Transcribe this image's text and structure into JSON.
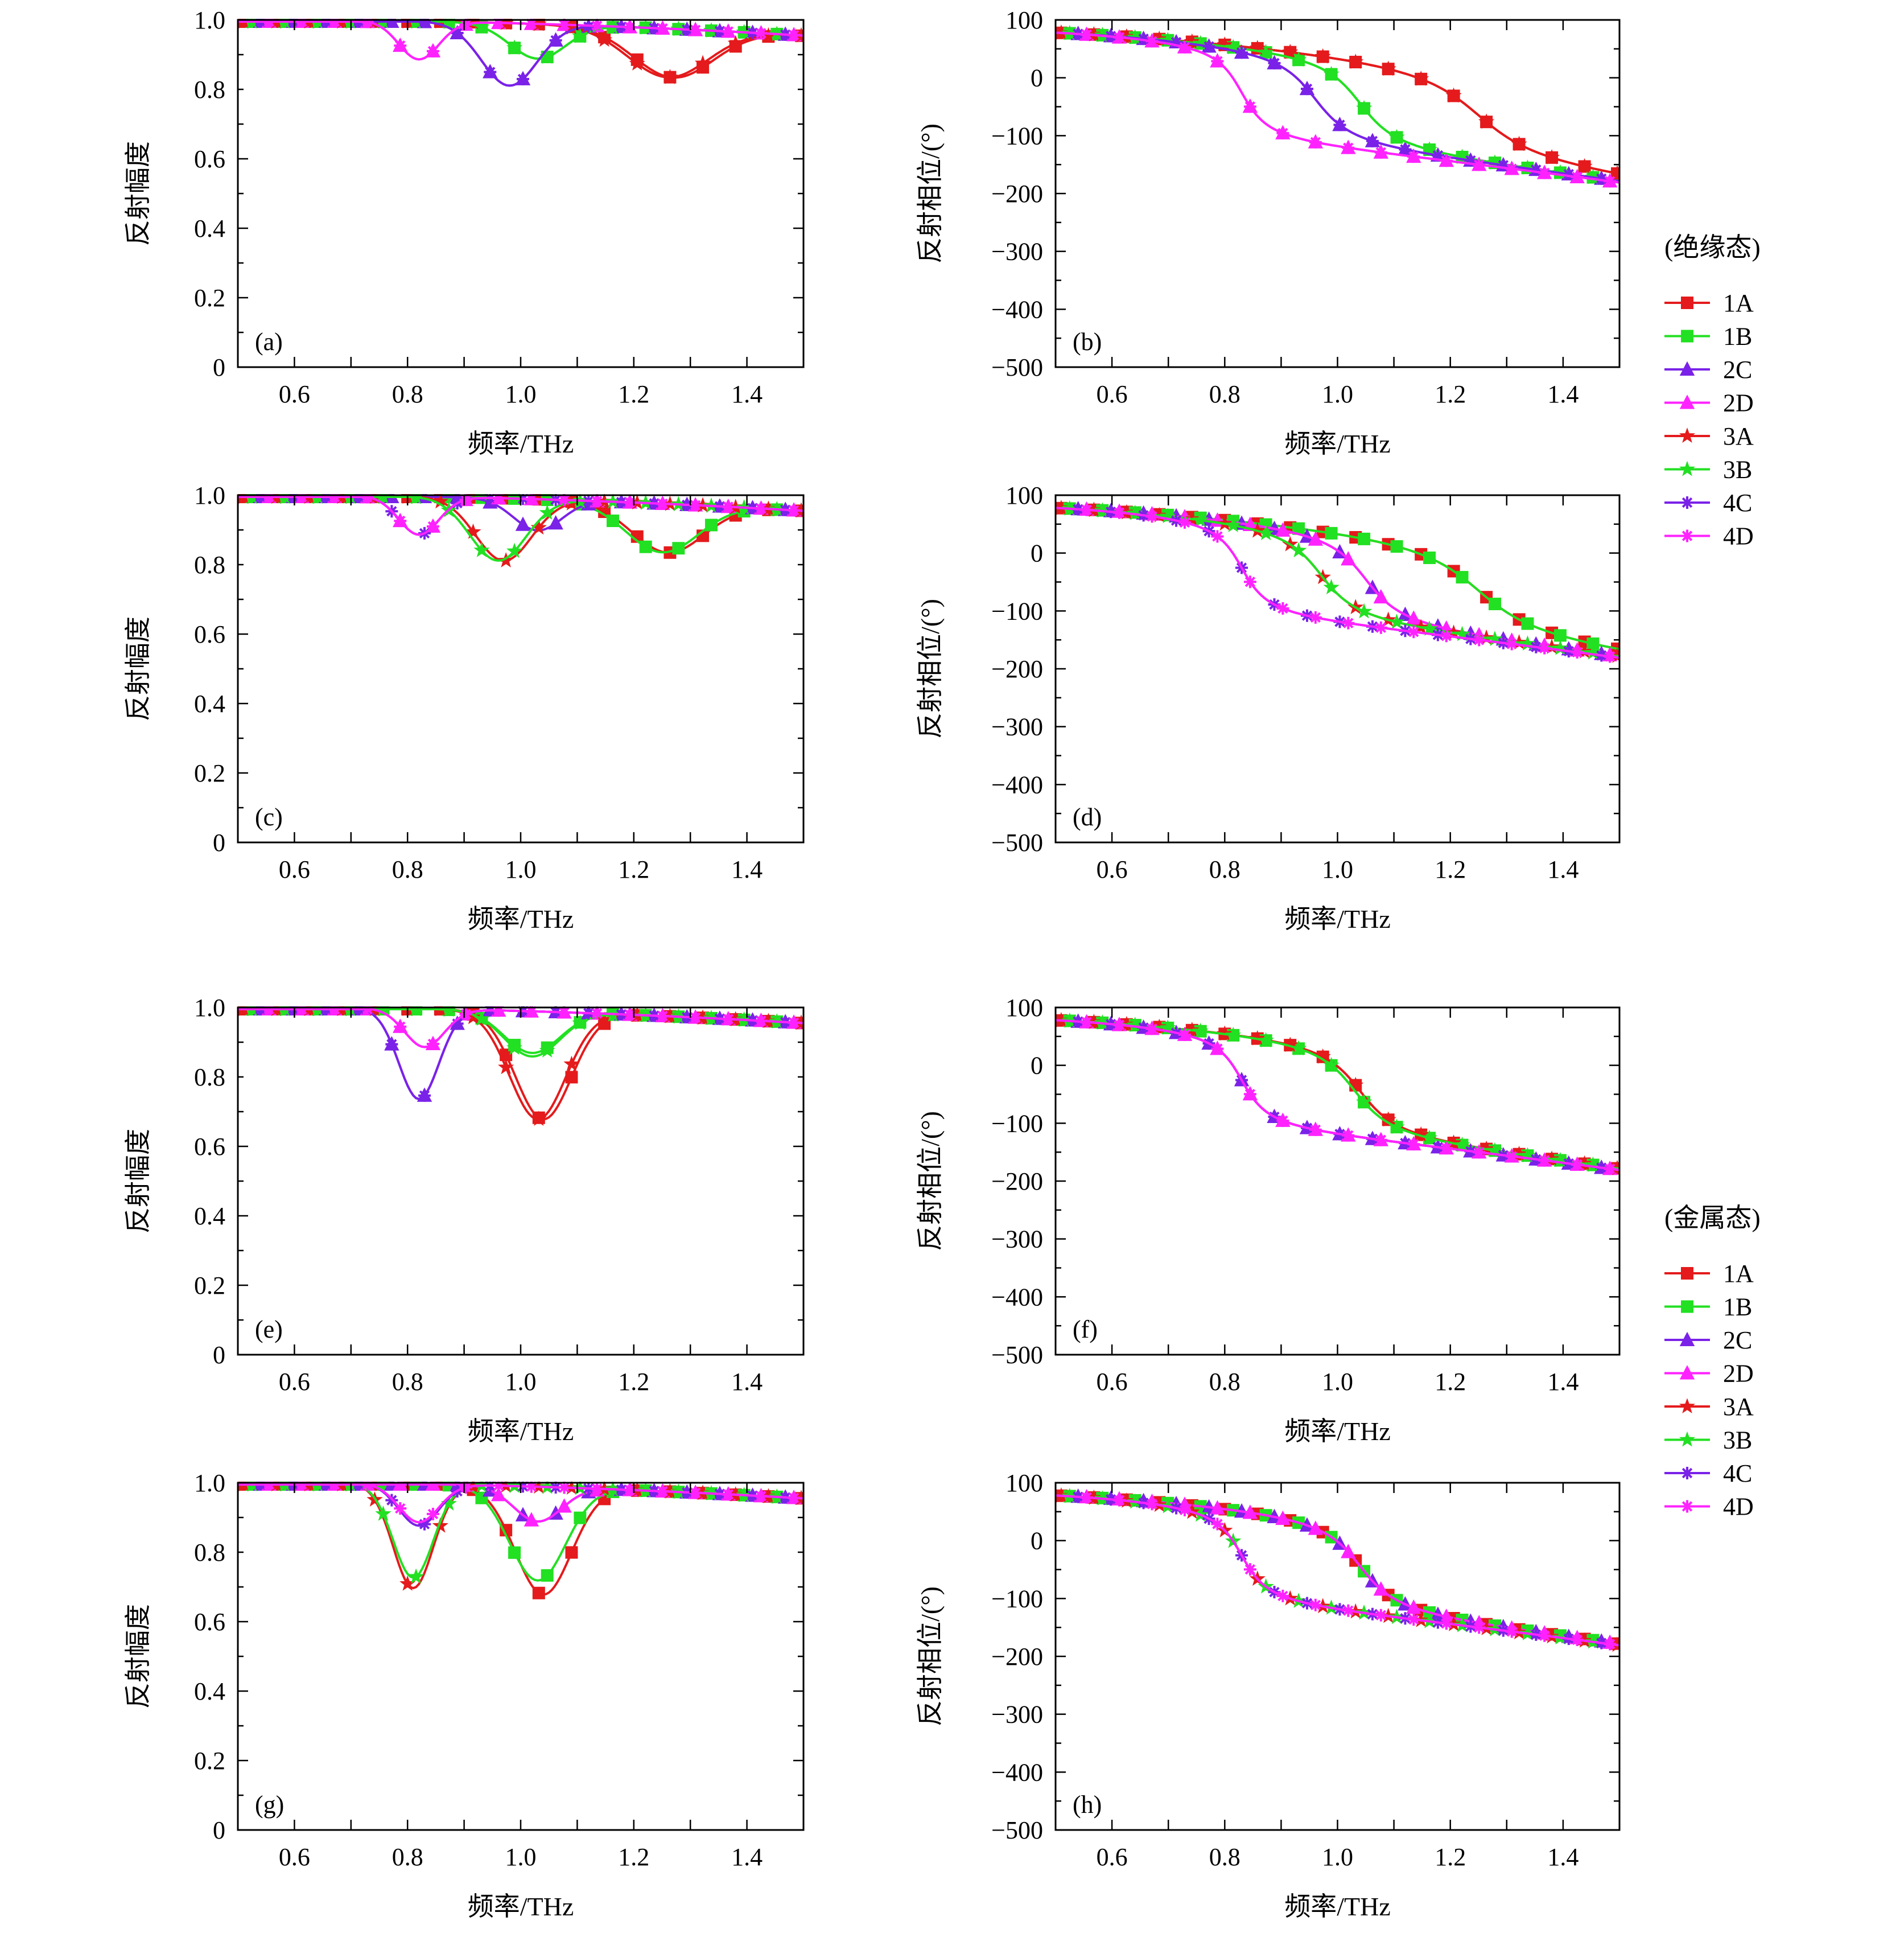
{
  "figure": {
    "series_styles": [
      {
        "name": "1A",
        "color": "#e41a1c",
        "marker": "square"
      },
      {
        "name": "1B",
        "color": "#22e022",
        "marker": "square"
      },
      {
        "name": "2C",
        "color": "#7a22e8",
        "marker": "triangle"
      },
      {
        "name": "2D",
        "color": "#ff22ff",
        "marker": "triangle"
      },
      {
        "name": "3A",
        "color": "#e41a1c",
        "marker": "star"
      },
      {
        "name": "3B",
        "color": "#22e022",
        "marker": "star"
      },
      {
        "name": "4C",
        "color": "#7a22e8",
        "marker": "asterisk"
      },
      {
        "name": "4D",
        "color": "#ff22ff",
        "marker": "asterisk"
      }
    ],
    "legends": [
      {
        "title": "(绝缘态)",
        "entries": [
          "1A",
          "1B",
          "2C",
          "2D",
          "3A",
          "3B",
          "4C",
          "4D"
        ]
      },
      {
        "title": "(金属态)",
        "entries": [
          "1A",
          "1B",
          "2C",
          "2D",
          "3A",
          "3B",
          "4C",
          "4D"
        ]
      }
    ]
  },
  "chart_data": [
    {
      "panel": "(a)",
      "type": "line",
      "xlabel": "频率/THz",
      "ylabel": "反射幅度",
      "xlim": [
        0.5,
        1.5
      ],
      "ylim": [
        0,
        1.0
      ],
      "xticks": [
        "0.6",
        "0.8",
        "1.0",
        "1.2",
        "1.4"
      ],
      "yticks": [
        "0",
        "0.2",
        "0.4",
        "0.6",
        "0.8",
        "1.0"
      ],
      "series": [
        {
          "name": "1A",
          "dips": [
            [
              1.27,
              0.86,
              0.1
            ]
          ]
        },
        {
          "name": "1B",
          "dips": [
            [
              1.03,
              0.9,
              0.07
            ]
          ]
        },
        {
          "name": "2C",
          "dips": [
            [
              0.98,
              0.82,
              0.07
            ]
          ]
        },
        {
          "name": "2D",
          "dips": [
            [
              0.82,
              0.89,
              0.05
            ]
          ]
        },
        {
          "name": "3A",
          "dips": [
            [
              1.26,
              0.86,
              0.1
            ]
          ]
        },
        {
          "name": "3B",
          "dips": [
            [
              1.03,
              0.9,
              0.07
            ]
          ]
        },
        {
          "name": "4C",
          "dips": [
            [
              0.98,
              0.82,
              0.07
            ]
          ]
        },
        {
          "name": "4D",
          "dips": [
            [
              0.82,
              0.89,
              0.05
            ]
          ]
        }
      ]
    },
    {
      "panel": "(b)",
      "type": "line",
      "xlabel": "频率/THz",
      "ylabel": "反射相位/(°)",
      "xlim": [
        0.5,
        1.5
      ],
      "ylim": [
        -500,
        100
      ],
      "xticks": [
        "0.6",
        "0.8",
        "1.0",
        "1.2",
        "1.4"
      ],
      "yticks": [
        "−500",
        "−400",
        "−300",
        "−200",
        "−100",
        "0",
        "100"
      ],
      "series": [
        {
          "name": "1A",
          "res": 1.25,
          "w": 0.08
        },
        {
          "name": "1B",
          "res": 1.04,
          "w": 0.05
        },
        {
          "name": "2C",
          "res": 0.96,
          "w": 0.05
        },
        {
          "name": "2D",
          "res": 0.83,
          "w": 0.035
        },
        {
          "name": "3A",
          "res": 1.25,
          "w": 0.08
        },
        {
          "name": "3B",
          "res": 1.04,
          "w": 0.05
        },
        {
          "name": "4C",
          "res": 0.96,
          "w": 0.05
        },
        {
          "name": "4D",
          "res": 0.83,
          "w": 0.035
        }
      ]
    },
    {
      "panel": "(c)",
      "type": "line",
      "xlabel": "频率/THz",
      "ylabel": "反射幅度",
      "xlim": [
        0.5,
        1.5
      ],
      "ylim": [
        0,
        1.0
      ],
      "xticks": [
        "0.6",
        "0.8",
        "1.0",
        "1.2",
        "1.4"
      ],
      "yticks": [
        "0",
        "0.2",
        "0.4",
        "0.6",
        "0.8",
        "1.0"
      ],
      "series": [
        {
          "name": "1A",
          "dips": [
            [
              1.26,
              0.86,
              0.09
            ]
          ]
        },
        {
          "name": "1B",
          "dips": [
            [
              1.25,
              0.86,
              0.09
            ]
          ]
        },
        {
          "name": "2C",
          "dips": [
            [
              1.03,
              0.91,
              0.06
            ]
          ]
        },
        {
          "name": "2D",
          "dips": [
            [
              0.82,
              0.89,
              0.05
            ]
          ]
        },
        {
          "name": "3A",
          "dips": [
            [
              0.97,
              0.82,
              0.07
            ]
          ]
        },
        {
          "name": "3B",
          "dips": [
            [
              0.96,
              0.82,
              0.07
            ]
          ]
        },
        {
          "name": "4C",
          "dips": [
            [
              0.82,
              0.89,
              0.05
            ]
          ]
        },
        {
          "name": "4D",
          "dips": [
            [
              0.82,
              0.89,
              0.05
            ]
          ]
        }
      ]
    },
    {
      "panel": "(d)",
      "type": "line",
      "xlabel": "频率/THz",
      "ylabel": "反射相位/(°)",
      "xlim": [
        0.5,
        1.5
      ],
      "ylim": [
        -500,
        100
      ],
      "xticks": [
        "0.6",
        "0.8",
        "1.0",
        "1.2",
        "1.4"
      ],
      "yticks": [
        "−500",
        "−400",
        "−300",
        "−200",
        "−100",
        "0",
        "100"
      ],
      "series": [
        {
          "name": "1A",
          "res": 1.25,
          "w": 0.08
        },
        {
          "name": "1B",
          "res": 1.25,
          "w": 0.08
        },
        {
          "name": "2C",
          "res": 1.05,
          "w": 0.05
        },
        {
          "name": "2D",
          "res": 1.05,
          "w": 0.05
        },
        {
          "name": "3A",
          "res": 0.97,
          "w": 0.05
        },
        {
          "name": "3B",
          "res": 0.97,
          "w": 0.05
        },
        {
          "name": "4C",
          "res": 0.83,
          "w": 0.035
        },
        {
          "name": "4D",
          "res": 0.83,
          "w": 0.035
        }
      ]
    },
    {
      "panel": "(e)",
      "type": "line",
      "xlabel": "频率/THz",
      "ylabel": "反射幅度",
      "xlim": [
        0.5,
        1.5
      ],
      "ylim": [
        0,
        1.0
      ],
      "xticks": [
        "0.6",
        "0.8",
        "1.0",
        "1.2",
        "1.4"
      ],
      "yticks": [
        "0",
        "0.2",
        "0.4",
        "0.6",
        "0.8",
        "1.0"
      ],
      "series": [
        {
          "name": "1A",
          "dips": [
            [
              1.04,
              0.69,
              0.07
            ]
          ]
        },
        {
          "name": "1B",
          "dips": [
            [
              1.02,
              0.88,
              0.07
            ]
          ]
        },
        {
          "name": "2C",
          "dips": [
            [
              0.82,
              0.74,
              0.05
            ]
          ]
        },
        {
          "name": "2D",
          "dips": [
            [
              0.83,
              0.89,
              0.05
            ]
          ]
        },
        {
          "name": "3A",
          "dips": [
            [
              1.03,
              0.69,
              0.07
            ]
          ]
        },
        {
          "name": "3B",
          "dips": [
            [
              1.02,
              0.87,
              0.07
            ]
          ]
        },
        {
          "name": "4C",
          "dips": [
            [
              0.82,
              0.74,
              0.05
            ]
          ]
        },
        {
          "name": "4D",
          "dips": [
            [
              0.83,
              0.89,
              0.05
            ]
          ]
        }
      ]
    },
    {
      "panel": "(f)",
      "type": "line",
      "xlabel": "频率/THz",
      "ylabel": "反射相位/(°)",
      "xlim": [
        0.5,
        1.5
      ],
      "ylim": [
        -500,
        100
      ],
      "xticks": [
        "0.6",
        "0.8",
        "1.0",
        "1.2",
        "1.4"
      ],
      "yticks": [
        "−500",
        "−400",
        "−300",
        "−200",
        "−100",
        "0",
        "100"
      ],
      "series": [
        {
          "name": "1A",
          "res": 1.04,
          "w": 0.05
        },
        {
          "name": "1B",
          "res": 1.03,
          "w": 0.05
        },
        {
          "name": "2C",
          "res": 0.83,
          "w": 0.035
        },
        {
          "name": "2D",
          "res": 0.83,
          "w": 0.035
        },
        {
          "name": "3A",
          "res": 1.04,
          "w": 0.05
        },
        {
          "name": "3B",
          "res": 1.03,
          "w": 0.05
        },
        {
          "name": "4C",
          "res": 0.83,
          "w": 0.035
        },
        {
          "name": "4D",
          "res": 0.83,
          "w": 0.035
        }
      ]
    },
    {
      "panel": "(g)",
      "type": "line",
      "xlabel": "频率/THz",
      "ylabel": "反射幅度",
      "xlim": [
        0.5,
        1.5
      ],
      "ylim": [
        0,
        1.0
      ],
      "xticks": [
        "0.6",
        "0.8",
        "1.0",
        "1.2",
        "1.4"
      ],
      "yticks": [
        "0",
        "0.2",
        "0.4",
        "0.6",
        "0.8",
        "1.0"
      ],
      "series": [
        {
          "name": "1A",
          "dips": [
            [
              1.04,
              0.69,
              0.07
            ]
          ]
        },
        {
          "name": "1B",
          "dips": [
            [
              1.03,
              0.73,
              0.07
            ]
          ]
        },
        {
          "name": "2C",
          "dips": [
            [
              1.03,
              0.9,
              0.06
            ]
          ]
        },
        {
          "name": "2D",
          "dips": [
            [
              1.03,
              0.9,
              0.06
            ]
          ]
        },
        {
          "name": "3A",
          "dips": [
            [
              0.81,
              0.7,
              0.05
            ]
          ]
        },
        {
          "name": "3B",
          "dips": [
            [
              0.81,
              0.73,
              0.05
            ]
          ]
        },
        {
          "name": "4C",
          "dips": [
            [
              0.82,
              0.88,
              0.05
            ]
          ]
        },
        {
          "name": "4D",
          "dips": [
            [
              0.82,
              0.89,
              0.05
            ]
          ]
        }
      ]
    },
    {
      "panel": "(h)",
      "type": "line",
      "xlabel": "频率/THz",
      "ylabel": "反射相位/(°)",
      "xlim": [
        0.5,
        1.5
      ],
      "ylim": [
        -500,
        100
      ],
      "xticks": [
        "0.6",
        "0.8",
        "1.0",
        "1.2",
        "1.4"
      ],
      "yticks": [
        "−500",
        "−400",
        "−300",
        "−200",
        "−100",
        "0",
        "100"
      ],
      "series": [
        {
          "name": "1A",
          "res": 1.04,
          "w": 0.05
        },
        {
          "name": "1B",
          "res": 1.04,
          "w": 0.05
        },
        {
          "name": "2C",
          "res": 1.04,
          "w": 0.05
        },
        {
          "name": "2D",
          "res": 1.04,
          "w": 0.05
        },
        {
          "name": "3A",
          "res": 0.83,
          "w": 0.035
        },
        {
          "name": "3B",
          "res": 0.83,
          "w": 0.035
        },
        {
          "name": "4C",
          "res": 0.83,
          "w": 0.035
        },
        {
          "name": "4D",
          "res": 0.83,
          "w": 0.035
        }
      ]
    }
  ]
}
